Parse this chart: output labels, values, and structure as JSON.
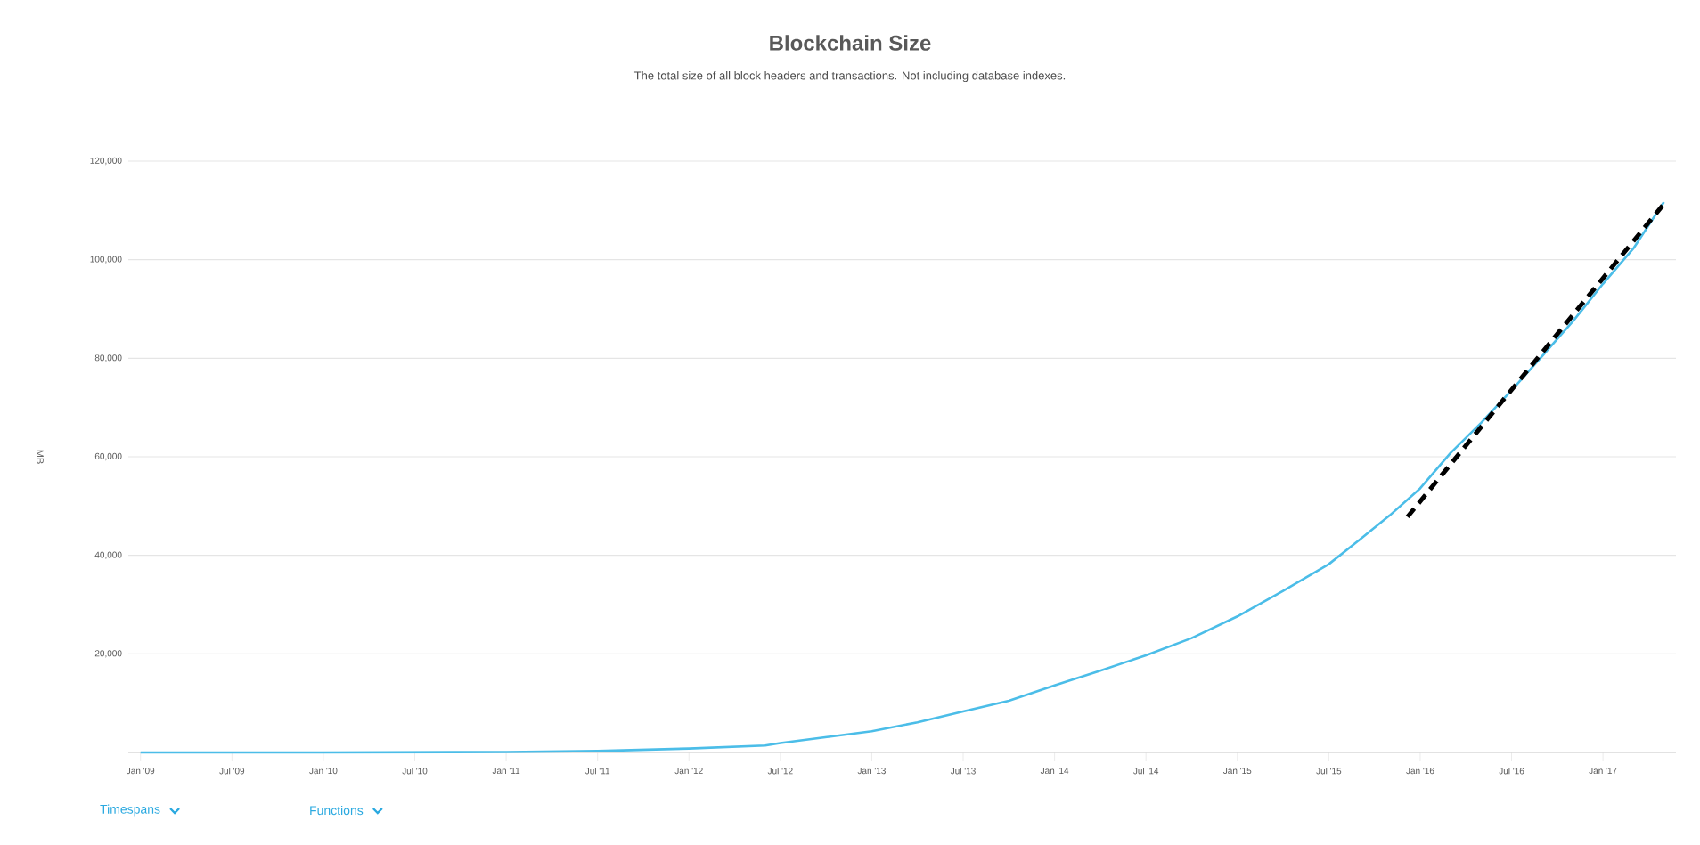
{
  "chart_data": {
    "type": "line",
    "title": "Blockchain Size",
    "subtitle": "The total size of all block headers and transactions. Not including database indexes.",
    "ylabel": "MB",
    "annotations": [
      "Timespans",
      "Functions"
    ],
    "xlim": [
      "2008-12-07",
      "2017-05-25"
    ],
    "xticks": [
      {
        "value": "2009-01",
        "label": "Jan '09"
      },
      {
        "value": "2009-07",
        "label": "Jul '09"
      },
      {
        "value": "2010-01",
        "label": "Jan '10"
      },
      {
        "value": "2010-07",
        "label": "Jul '10"
      },
      {
        "value": "2011-01",
        "label": "Jan '11"
      },
      {
        "value": "2011-07",
        "label": "Jul '11"
      },
      {
        "value": "2012-01",
        "label": "Jan '12"
      },
      {
        "value": "2012-07",
        "label": "Jul '12"
      },
      {
        "value": "2013-01",
        "label": "Jan '13"
      },
      {
        "value": "2013-07",
        "label": "Jul '13"
      },
      {
        "value": "2014-01",
        "label": "Jan '14"
      },
      {
        "value": "2014-07",
        "label": "Jul '14"
      },
      {
        "value": "2015-01",
        "label": "Jan '15"
      },
      {
        "value": "2015-07",
        "label": "Jul '15"
      },
      {
        "value": "2016-01",
        "label": "Jan '16"
      },
      {
        "value": "2016-07",
        "label": "Jul '16"
      },
      {
        "value": "2017-01",
        "label": "Jan '17"
      }
    ],
    "ylim": [
      0,
      120000
    ],
    "yticks": [
      {
        "value": 20000,
        "label": "20,000"
      },
      {
        "value": 40000,
        "label": "40,000"
      },
      {
        "value": 60000,
        "label": "60,000"
      },
      {
        "value": 80000,
        "label": "80,000"
      },
      {
        "value": 100000,
        "label": "100,000"
      },
      {
        "value": 120000,
        "label": "120,000"
      }
    ],
    "grid": "y",
    "marker": "none",
    "series": [
      {
        "color": "#4bbde8",
        "line_style": "solid",
        "x": [
          "2009-01",
          "2010-01",
          "2011-01",
          "2011-07",
          "2012-01",
          "2012-06",
          "2012-07",
          "2013-01",
          "2013-04",
          "2013-07",
          "2013-10",
          "2014-01",
          "2014-04",
          "2014-07",
          "2014-10",
          "2015-01",
          "2015-04",
          "2015-07",
          "2015-09",
          "2015-11",
          "2016-01",
          "2016-03",
          "2016-05",
          "2016-07",
          "2016-09",
          "2016-11",
          "2017-01",
          "2017-03",
          "2017-05"
        ],
        "values": [
          0,
          0,
          100,
          300,
          800,
          1400,
          1900,
          4300,
          6100,
          8300,
          10500,
          13600,
          16600,
          19700,
          23200,
          27600,
          32800,
          38200,
          43100,
          48100,
          53600,
          60800,
          66900,
          73500,
          80400,
          87400,
          95100,
          102300,
          111700
        ]
      },
      {
        "type": "line",
        "color": "#000000",
        "line_style": "dashed",
        "x": [
          "2015-12-06",
          "2017-05-04"
        ],
        "values": [
          47800,
          111700
        ]
      }
    ]
  }
}
